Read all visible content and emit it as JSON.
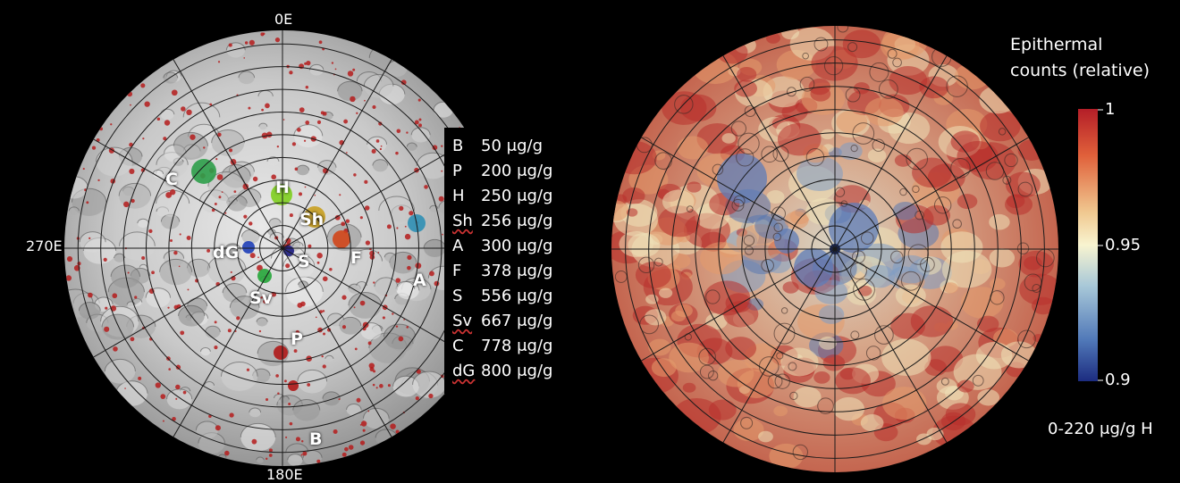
{
  "left_map": {
    "axis_labels": {
      "top": "0E",
      "left": "270E",
      "bottom": "180E"
    },
    "crater_markers": [
      {
        "id": "C",
        "color": "#2e9e4a"
      },
      {
        "id": "H",
        "color": "#7fcf1f"
      },
      {
        "id": "Sh",
        "color": "#c9a020"
      },
      {
        "id": "dG",
        "color": "#1f3fb8"
      },
      {
        "id": "S",
        "color": "#1a1a80"
      },
      {
        "id": "F",
        "color": "#d1461a"
      },
      {
        "id": "A",
        "color": "#2f8fb4"
      },
      {
        "id": "Sv",
        "color": "#26a63a"
      },
      {
        "id": "P",
        "color": "#b01818"
      },
      {
        "id": "B",
        "color": "#b01818"
      }
    ]
  },
  "legend": {
    "rows": [
      {
        "key": "B",
        "value": "50 μg/g"
      },
      {
        "key": "P",
        "value": "200 μg/g"
      },
      {
        "key": "H",
        "value": "250 μg/g"
      },
      {
        "key": "Sh",
        "value": "256 μg/g"
      },
      {
        "key": "A",
        "value": "300 μg/g"
      },
      {
        "key": "F",
        "value": "378 μg/g"
      },
      {
        "key": "S",
        "value": "556 μg/g"
      },
      {
        "key": "Sv",
        "value": "667 μg/g"
      },
      {
        "key": "C",
        "value": "778 μg/g"
      },
      {
        "key": "dG",
        "value": "800 μg/g"
      }
    ]
  },
  "colorbar": {
    "title_line1": "Epithermal",
    "title_line2": "counts (relative)",
    "tick_top": "1",
    "tick_mid": "0.95",
    "tick_bottom": "0.9",
    "colors": [
      "#b41e28",
      "#e0603a",
      "#f0c890",
      "#f8f4d0",
      "#a8c8d8",
      "#5078b8",
      "#1c2c80"
    ]
  },
  "caption": "0-220 μg/g H"
}
